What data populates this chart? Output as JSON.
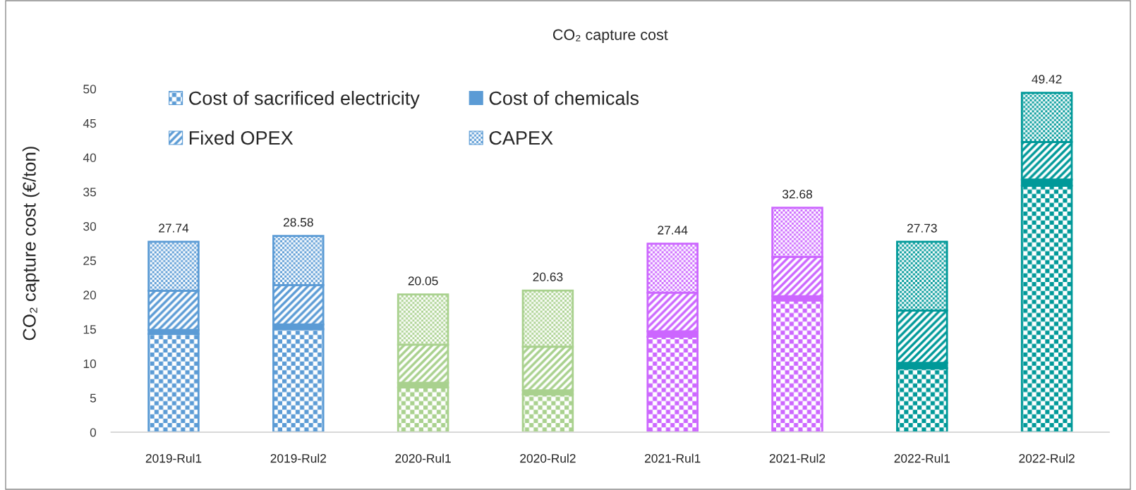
{
  "chart_data": {
    "type": "bar",
    "stacked": true,
    "title": "CO₂ capture cost",
    "ylabel": "CO₂ capture cost (€/ton)",
    "categories": [
      "2019-Rul1",
      "2019-Rul2",
      "2020-Rul1",
      "2020-Rul2",
      "2021-Rul1",
      "2021-Rul2",
      "2022-Rul1",
      "2022-Rul2"
    ],
    "series": [
      {
        "name": "Cost of sacrificed electricity",
        "colors": [
          "#5b9bd5",
          "#5b9bd5",
          "#a9d18e",
          "#a9d18e",
          "#cc66ff",
          "#cc66ff",
          "#009999",
          "#009999"
        ],
        "values": [
          14.3,
          15.0,
          6.5,
          5.5,
          13.9,
          19.2,
          9.3,
          35.9
        ]
      },
      {
        "name": "Cost of chemicals",
        "colors": [
          "#5b9bd5",
          "#5b9bd5",
          "#a9d18e",
          "#a9d18e",
          "#cc66ff",
          "#cc66ff",
          "#009999",
          "#009999"
        ],
        "values": [
          0.6,
          0.7,
          0.7,
          0.6,
          0.8,
          0.6,
          0.8,
          0.9
        ]
      },
      {
        "name": "Fixed OPEX",
        "colors": [
          "#5b9bd5",
          "#5b9bd5",
          "#a9d18e",
          "#a9d18e",
          "#cc66ff",
          "#cc66ff",
          "#009999",
          "#009999"
        ],
        "values": [
          5.7,
          5.72,
          5.54,
          6.35,
          5.62,
          5.72,
          7.63,
          5.46
        ]
      },
      {
        "name": "CAPEX",
        "colors": [
          "#5b9bd5",
          "#5b9bd5",
          "#a9d18e",
          "#a9d18e",
          "#cc66ff",
          "#cc66ff",
          "#009999",
          "#009999"
        ],
        "values": [
          7.14,
          7.16,
          7.31,
          8.18,
          7.12,
          7.16,
          10.0,
          7.16
        ]
      }
    ],
    "totals": [
      "27.74",
      "28.58",
      "20.05",
      "20.63",
      "27.44",
      "32.68",
      "27.73",
      "49.42"
    ],
    "ylim": [
      0,
      50
    ],
    "yticks": [
      0,
      5,
      10,
      15,
      20,
      25,
      30,
      35,
      40,
      45,
      50
    ],
    "legend": "top left"
  }
}
